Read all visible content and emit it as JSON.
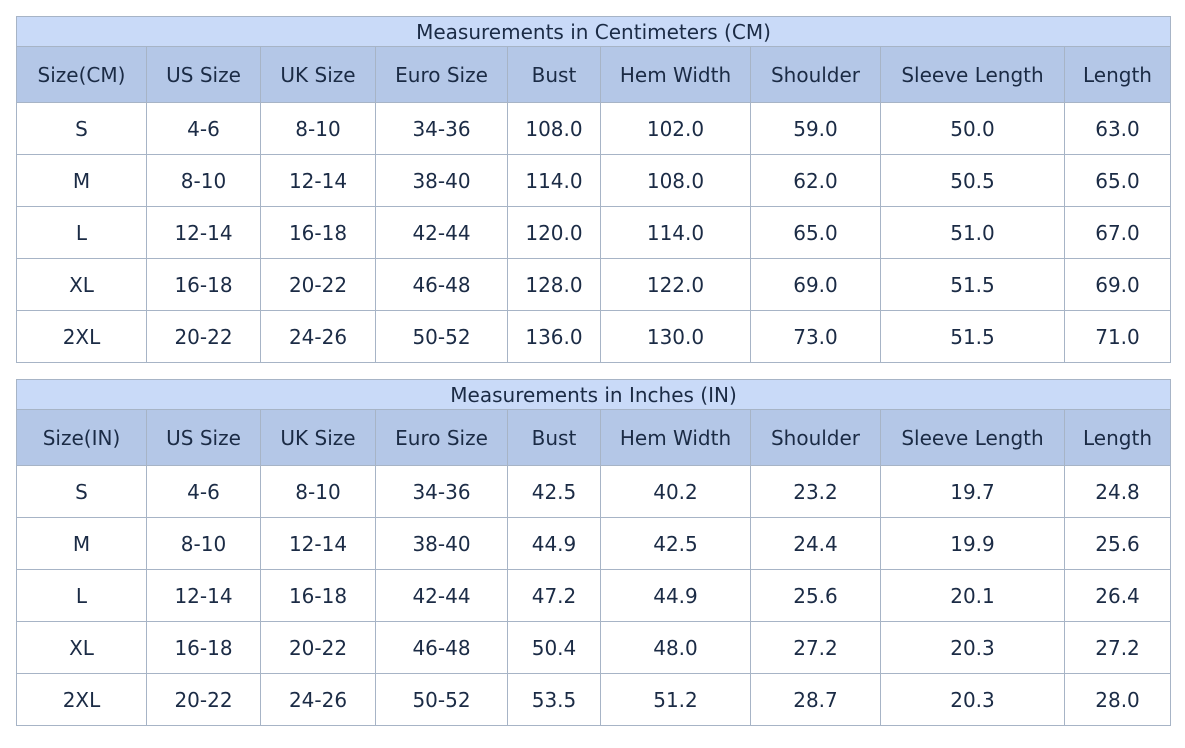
{
  "tables": [
    {
      "title": "Measurements in Centimeters (CM)",
      "header": [
        "Size(CM)",
        "US Size",
        "UK Size",
        "Euro Size",
        "Bust",
        "Hem Width",
        "Shoulder",
        "Sleeve Length",
        "Length"
      ],
      "rows": [
        [
          "S",
          "4-6",
          "8-10",
          "34-36",
          "108.0",
          "102.0",
          "59.0",
          "50.0",
          "63.0"
        ],
        [
          "M",
          "8-10",
          "12-14",
          "38-40",
          "114.0",
          "108.0",
          "62.0",
          "50.5",
          "65.0"
        ],
        [
          "L",
          "12-14",
          "16-18",
          "42-44",
          "120.0",
          "114.0",
          "65.0",
          "51.0",
          "67.0"
        ],
        [
          "XL",
          "16-18",
          "20-22",
          "46-48",
          "128.0",
          "122.0",
          "69.0",
          "51.5",
          "69.0"
        ],
        [
          "2XL",
          "20-22",
          "24-26",
          "50-52",
          "136.0",
          "130.0",
          "73.0",
          "51.5",
          "71.0"
        ]
      ]
    },
    {
      "title": "Measurements in Inches (IN)",
      "header": [
        "Size(IN)",
        "US Size",
        "UK Size",
        "Euro Size",
        "Bust",
        "Hem Width",
        "Shoulder",
        "Sleeve Length",
        "Length"
      ],
      "rows": [
        [
          "S",
          "4-6",
          "8-10",
          "34-36",
          "42.5",
          "40.2",
          "23.2",
          "19.7",
          "24.8"
        ],
        [
          "M",
          "8-10",
          "12-14",
          "38-40",
          "44.9",
          "42.5",
          "24.4",
          "19.9",
          "25.6"
        ],
        [
          "L",
          "12-14",
          "16-18",
          "42-44",
          "47.2",
          "44.9",
          "25.6",
          "20.1",
          "26.4"
        ],
        [
          "XL",
          "16-18",
          "20-22",
          "46-48",
          "50.4",
          "48.0",
          "27.2",
          "20.3",
          "27.2"
        ],
        [
          "2XL",
          "20-22",
          "24-26",
          "50-52",
          "53.5",
          "51.2",
          "28.7",
          "20.3",
          "28.0"
        ]
      ]
    }
  ]
}
